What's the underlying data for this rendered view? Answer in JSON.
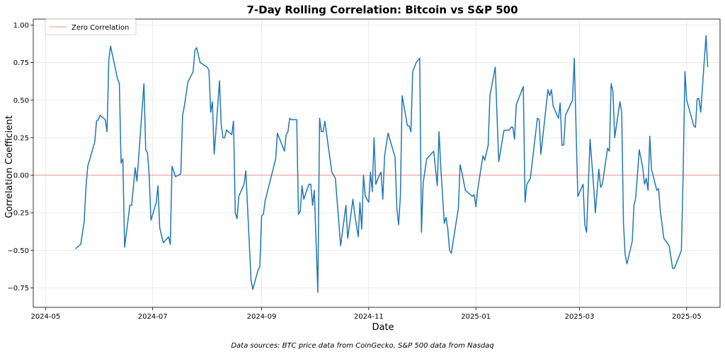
{
  "chart_data": {
    "type": "line",
    "title": "7-Day Rolling Correlation: Bitcoin vs S&P 500",
    "xlabel": "Date",
    "ylabel": "Correlation Coefficient",
    "footnote": "Data sources: BTC price data from CoinGecko, S&P 500 data from Nasdaq",
    "x_range": [
      "2024-04-24",
      "2025-05-20"
    ],
    "ylim": [
      -0.88,
      1.04
    ],
    "grid": true,
    "legend_position": "top-left",
    "x_ticks": [
      "2024-05",
      "2024-07",
      "2024-09",
      "2024-11",
      "2025-01",
      "2025-03",
      "2025-05"
    ],
    "y_ticks": [
      -0.75,
      -0.5,
      -0.25,
      0.0,
      0.25,
      0.5,
      0.75,
      1.0
    ],
    "y_tick_labels": [
      "−0.75",
      "−0.50",
      "−0.25",
      "0.00",
      "0.25",
      "0.50",
      "0.75",
      "1.00"
    ],
    "colors": {
      "series": "#1f77b4",
      "zero_line": "#f4a3a3"
    },
    "reference_lines": [
      {
        "name": "Zero Correlation",
        "y": 0.0,
        "color": "#f4a3a3"
      }
    ],
    "series": [
      {
        "color": "#1f77b4",
        "points": [
          [
            "2024-05-18",
            -0.49
          ],
          [
            "2024-05-21",
            -0.46
          ],
          [
            "2024-05-23",
            -0.31
          ],
          [
            "2024-05-24",
            -0.08
          ],
          [
            "2024-05-25",
            0.06
          ],
          [
            "2024-05-29",
            0.22
          ],
          [
            "2024-05-30",
            0.36
          ],
          [
            "2024-05-31",
            0.37
          ],
          [
            "2024-06-01",
            0.4
          ],
          [
            "2024-06-04",
            0.37
          ],
          [
            "2024-06-05",
            0.29
          ],
          [
            "2024-06-06",
            0.77
          ],
          [
            "2024-06-07",
            0.86
          ],
          [
            "2024-06-11",
            0.64
          ],
          [
            "2024-06-12",
            0.61
          ],
          [
            "2024-06-13",
            0.08
          ],
          [
            "2024-06-14",
            0.11
          ],
          [
            "2024-06-15",
            -0.48
          ],
          [
            "2024-06-18",
            -0.2
          ],
          [
            "2024-06-19",
            -0.2
          ],
          [
            "2024-06-21",
            0.05
          ],
          [
            "2024-06-22",
            -0.04
          ],
          [
            "2024-06-26",
            0.61
          ],
          [
            "2024-06-27",
            0.17
          ],
          [
            "2024-06-28",
            0.15
          ],
          [
            "2024-06-29",
            0.0
          ],
          [
            "2024-06-30",
            -0.3
          ],
          [
            "2024-07-03",
            -0.18
          ],
          [
            "2024-07-04",
            -0.07
          ],
          [
            "2024-07-05",
            -0.35
          ],
          [
            "2024-07-07",
            -0.45
          ],
          [
            "2024-07-10",
            -0.41
          ],
          [
            "2024-07-11",
            -0.46
          ],
          [
            "2024-07-12",
            0.06
          ],
          [
            "2024-07-14",
            -0.01
          ],
          [
            "2024-07-17",
            0.01
          ],
          [
            "2024-07-18",
            0.4
          ],
          [
            "2024-07-19",
            0.46
          ],
          [
            "2024-07-21",
            0.62
          ],
          [
            "2024-07-24",
            0.69
          ],
          [
            "2024-07-25",
            0.83
          ],
          [
            "2024-07-26",
            0.85
          ],
          [
            "2024-07-28",
            0.75
          ],
          [
            "2024-08-01",
            0.72
          ],
          [
            "2024-08-02",
            0.7
          ],
          [
            "2024-08-03",
            0.42
          ],
          [
            "2024-08-04",
            0.49
          ],
          [
            "2024-08-05",
            0.14
          ],
          [
            "2024-08-07",
            0.46
          ],
          [
            "2024-08-08",
            0.63
          ],
          [
            "2024-08-09",
            0.34
          ],
          [
            "2024-08-10",
            0.25
          ],
          [
            "2024-08-11",
            0.25
          ],
          [
            "2024-08-12",
            0.3
          ],
          [
            "2024-08-15",
            0.27
          ],
          [
            "2024-08-16",
            0.36
          ],
          [
            "2024-08-17",
            -0.25
          ],
          [
            "2024-08-18",
            -0.29
          ],
          [
            "2024-08-19",
            -0.14
          ],
          [
            "2024-08-22",
            -0.06
          ],
          [
            "2024-08-23",
            0.03
          ],
          [
            "2024-08-26",
            -0.7
          ],
          [
            "2024-08-27",
            -0.76
          ],
          [
            "2024-08-30",
            -0.63
          ],
          [
            "2024-08-31",
            -0.61
          ],
          [
            "2024-09-01",
            -0.27
          ],
          [
            "2024-09-02",
            -0.26
          ],
          [
            "2024-09-03",
            -0.17
          ],
          [
            "2024-09-09",
            0.11
          ],
          [
            "2024-09-10",
            0.28
          ],
          [
            "2024-09-14",
            0.16
          ],
          [
            "2024-09-15",
            0.27
          ],
          [
            "2024-09-16",
            0.29
          ],
          [
            "2024-09-17",
            0.38
          ],
          [
            "2024-09-18",
            0.37
          ],
          [
            "2024-09-21",
            0.37
          ],
          [
            "2024-09-22",
            -0.26
          ],
          [
            "2024-09-23",
            -0.24
          ],
          [
            "2024-09-24",
            -0.07
          ],
          [
            "2024-09-25",
            -0.16
          ],
          [
            "2024-09-27",
            -0.09
          ],
          [
            "2024-09-28",
            -0.06
          ],
          [
            "2024-09-29",
            -0.06
          ],
          [
            "2024-09-30",
            -0.2
          ],
          [
            "2024-10-01",
            -0.1
          ],
          [
            "2024-10-03",
            -0.78
          ],
          [
            "2024-10-04",
            0.38
          ],
          [
            "2024-10-05",
            0.29
          ],
          [
            "2024-10-06",
            0.29
          ],
          [
            "2024-10-07",
            0.36
          ],
          [
            "2024-10-11",
            0.02
          ],
          [
            "2024-10-13",
            -0.02
          ],
          [
            "2024-10-16",
            -0.47
          ],
          [
            "2024-10-19",
            -0.2
          ],
          [
            "2024-10-20",
            -0.42
          ],
          [
            "2024-10-23",
            -0.16
          ],
          [
            "2024-10-24",
            -0.26
          ],
          [
            "2024-10-26",
            -0.41
          ],
          [
            "2024-10-27",
            -0.18
          ],
          [
            "2024-10-28",
            -0.36
          ],
          [
            "2024-10-29",
            0.0
          ],
          [
            "2024-10-30",
            -0.14
          ],
          [
            "2024-11-01",
            -0.18
          ],
          [
            "2024-11-02",
            0.02
          ],
          [
            "2024-11-03",
            -0.11
          ],
          [
            "2024-11-04",
            0.25
          ],
          [
            "2024-11-05",
            -0.06
          ],
          [
            "2024-11-06",
            -0.03
          ],
          [
            "2024-11-07",
            0.0
          ],
          [
            "2024-11-08",
            0.02
          ],
          [
            "2024-11-09",
            -0.16
          ],
          [
            "2024-11-10",
            0.13
          ],
          [
            "2024-11-12",
            0.28
          ],
          [
            "2024-11-16",
            0.12
          ],
          [
            "2024-11-17",
            -0.22
          ],
          [
            "2024-11-18",
            -0.33
          ],
          [
            "2024-11-19",
            -0.14
          ],
          [
            "2024-11-20",
            0.53
          ],
          [
            "2024-11-23",
            0.33
          ],
          [
            "2024-11-24",
            0.33
          ],
          [
            "2024-11-25",
            0.29
          ],
          [
            "2024-11-26",
            0.69
          ],
          [
            "2024-11-28",
            0.75
          ],
          [
            "2024-11-30",
            0.78
          ],
          [
            "2024-12-01",
            -0.38
          ],
          [
            "2024-12-02",
            -0.05
          ],
          [
            "2024-12-04",
            0.11
          ],
          [
            "2024-12-08",
            0.16
          ],
          [
            "2024-12-10",
            -0.07
          ],
          [
            "2024-12-11",
            0.29
          ],
          [
            "2024-12-12",
            0.06
          ],
          [
            "2024-12-14",
            -0.32
          ],
          [
            "2024-12-15",
            -0.28
          ],
          [
            "2024-12-16",
            -0.36
          ],
          [
            "2024-12-17",
            -0.5
          ],
          [
            "2024-12-18",
            -0.52
          ],
          [
            "2024-12-22",
            -0.22
          ],
          [
            "2024-12-23",
            0.07
          ],
          [
            "2024-12-24",
            0.02
          ],
          [
            "2024-12-26",
            -0.1
          ],
          [
            "2024-12-30",
            -0.14
          ],
          [
            "2024-12-31",
            -0.13
          ],
          [
            "2025-01-01",
            -0.21
          ],
          [
            "2025-01-02",
            -0.1
          ],
          [
            "2025-01-05",
            0.13
          ],
          [
            "2025-01-06",
            0.1
          ],
          [
            "2025-01-08",
            0.2
          ],
          [
            "2025-01-09",
            0.53
          ],
          [
            "2025-01-12",
            0.72
          ],
          [
            "2025-01-14",
            0.09
          ],
          [
            "2025-01-17",
            0.3
          ],
          [
            "2025-01-20",
            0.3
          ],
          [
            "2025-01-21",
            0.32
          ],
          [
            "2025-01-22",
            0.32
          ],
          [
            "2025-01-23",
            0.24
          ],
          [
            "2025-01-24",
            0.47
          ],
          [
            "2025-01-28",
            0.59
          ],
          [
            "2025-01-29",
            -0.18
          ],
          [
            "2025-01-30",
            -0.06
          ],
          [
            "2025-02-01",
            -0.02
          ],
          [
            "2025-02-05",
            0.38
          ],
          [
            "2025-02-06",
            0.37
          ],
          [
            "2025-02-07",
            0.14
          ],
          [
            "2025-02-11",
            0.57
          ],
          [
            "2025-02-12",
            0.53
          ],
          [
            "2025-02-13",
            0.57
          ],
          [
            "2025-02-14",
            0.46
          ],
          [
            "2025-02-17",
            0.38
          ],
          [
            "2025-02-18",
            0.48
          ],
          [
            "2025-02-19",
            0.2
          ],
          [
            "2025-02-20",
            0.2
          ],
          [
            "2025-02-21",
            0.4
          ],
          [
            "2025-02-25",
            0.5
          ],
          [
            "2025-02-26",
            0.78
          ],
          [
            "2025-02-28",
            -0.14
          ],
          [
            "2025-03-03",
            -0.06
          ],
          [
            "2025-03-04",
            -0.33
          ],
          [
            "2025-03-05",
            -0.38
          ],
          [
            "2025-03-07",
            0.24
          ],
          [
            "2025-03-09",
            -0.07
          ],
          [
            "2025-03-10",
            -0.25
          ],
          [
            "2025-03-12",
            0.04
          ],
          [
            "2025-03-13",
            -0.08
          ],
          [
            "2025-03-14",
            -0.06
          ],
          [
            "2025-03-17",
            0.18
          ],
          [
            "2025-03-18",
            0.16
          ],
          [
            "2025-03-19",
            0.61
          ],
          [
            "2025-03-20",
            0.56
          ],
          [
            "2025-03-21",
            0.25
          ],
          [
            "2025-03-24",
            0.49
          ],
          [
            "2025-03-25",
            0.42
          ],
          [
            "2025-03-26",
            -0.32
          ],
          [
            "2025-03-27",
            -0.53
          ],
          [
            "2025-03-28",
            -0.59
          ],
          [
            "2025-03-31",
            -0.44
          ],
          [
            "2025-04-01",
            -0.2
          ],
          [
            "2025-04-02",
            -0.15
          ],
          [
            "2025-04-04",
            0.17
          ],
          [
            "2025-04-06",
            0.05
          ],
          [
            "2025-04-07",
            -0.06
          ],
          [
            "2025-04-08",
            -0.02
          ],
          [
            "2025-04-09",
            -0.1
          ],
          [
            "2025-04-10",
            0.26
          ],
          [
            "2025-04-11",
            0.04
          ],
          [
            "2025-04-14",
            -0.1
          ],
          [
            "2025-04-15",
            -0.09
          ],
          [
            "2025-04-16",
            -0.24
          ],
          [
            "2025-04-18",
            -0.42
          ],
          [
            "2025-04-21",
            -0.47
          ],
          [
            "2025-04-23",
            -0.62
          ],
          [
            "2025-04-24",
            -0.62
          ],
          [
            "2025-04-28",
            -0.5
          ],
          [
            "2025-04-29",
            0.01
          ],
          [
            "2025-04-30",
            0.69
          ],
          [
            "2025-05-01",
            0.5
          ],
          [
            "2025-05-05",
            0.33
          ],
          [
            "2025-05-06",
            0.32
          ],
          [
            "2025-05-07",
            0.51
          ],
          [
            "2025-05-08",
            0.51
          ],
          [
            "2025-05-09",
            0.42
          ],
          [
            "2025-05-12",
            0.93
          ],
          [
            "2025-05-13",
            0.72
          ]
        ]
      }
    ]
  }
}
